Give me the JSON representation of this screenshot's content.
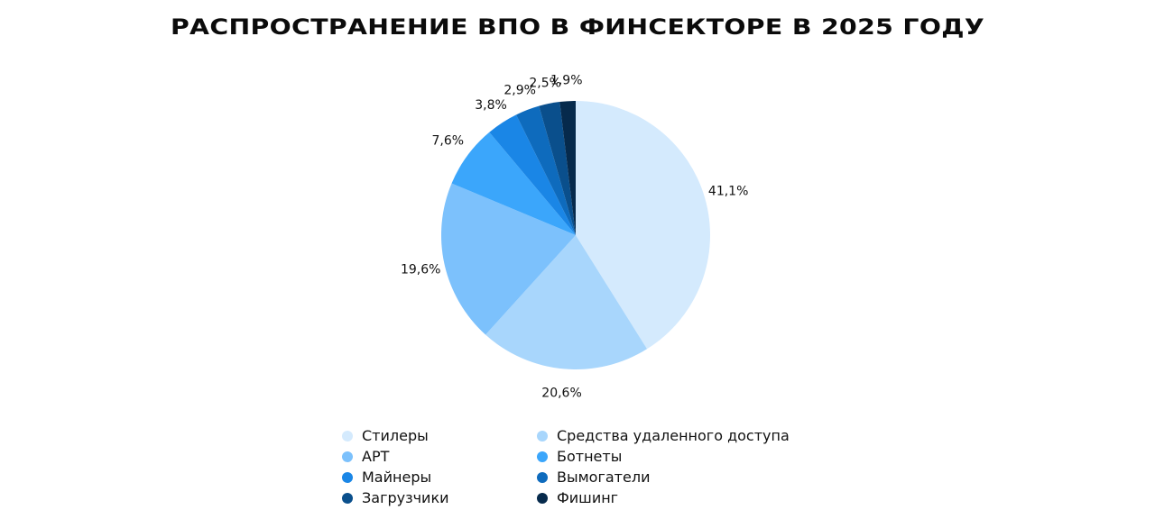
{
  "chart_data": {
    "type": "pie",
    "title": "РАСПРОСТРАНЕНИЕ ВПО В ФИНСЕКТОРЕ В 2025 ГОДУ",
    "slices": [
      {
        "name": "Стилеры",
        "value": 41.1,
        "label": "41,1%",
        "color": "#d4eafd"
      },
      {
        "name": "Средства удаленного доступа",
        "value": 20.6,
        "label": "20,6%",
        "color": "#a8d6fc"
      },
      {
        "name": "APT",
        "value": 19.6,
        "label": "19,6%",
        "color": "#7cc1fc"
      },
      {
        "name": "Ботнеты",
        "value": 7.6,
        "label": "7,6%",
        "color": "#3ba6fb"
      },
      {
        "name": "Майнеры",
        "value": 3.8,
        "label": "3,8%",
        "color": "#1a86e6"
      },
      {
        "name": "Вымогатели",
        "value": 2.9,
        "label": "2,9%",
        "color": "#0e6bbd"
      },
      {
        "name": "Загрузчики",
        "value": 2.5,
        "label": "2,5%",
        "color": "#0a4f8c"
      },
      {
        "name": "Фишинг",
        "value": 1.9,
        "label": "1,9%",
        "color": "#062a4c"
      }
    ],
    "legend_order": [
      "Стилеры",
      "Средства удаленного доступа",
      "APT",
      "Ботнеты",
      "Майнеры",
      "Вымогатели",
      "Загрузчики",
      "Фишинг"
    ],
    "legend_placement": "bottom"
  }
}
